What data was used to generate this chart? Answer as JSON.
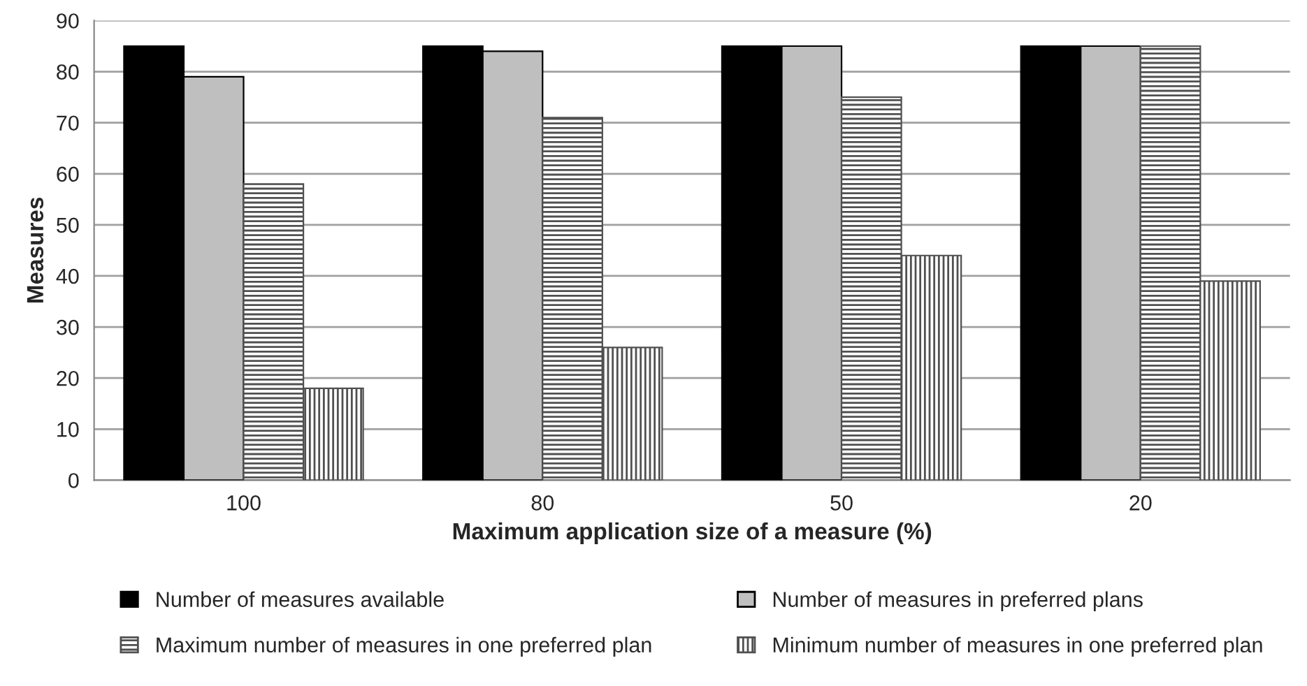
{
  "chart_data": {
    "type": "bar",
    "xlabel": "Maximum application size of a measure (%)",
    "ylabel": "Measures",
    "categories": [
      "100",
      "80",
      "50",
      "20"
    ],
    "series": [
      {
        "name": "Number of measures available",
        "color": "#000000",
        "values": [
          85,
          85,
          85,
          85
        ]
      },
      {
        "name": "Number of measures in preferred plans",
        "color": "#bfbfbf",
        "values": [
          79,
          84,
          85,
          85
        ]
      },
      {
        "name": "Maximum number of measures in one preferred plan",
        "color": "#505050",
        "values": [
          58,
          71,
          75,
          85
        ]
      },
      {
        "name": "Minimum number of measures in one preferred plan",
        "color": "#505050",
        "values": [
          18,
          26,
          44,
          39
        ]
      }
    ],
    "ylim": [
      0,
      90
    ],
    "yticks": [
      0,
      10,
      20,
      30,
      40,
      50,
      60,
      70,
      80,
      90
    ],
    "grid": "y",
    "legend": "bottom"
  }
}
